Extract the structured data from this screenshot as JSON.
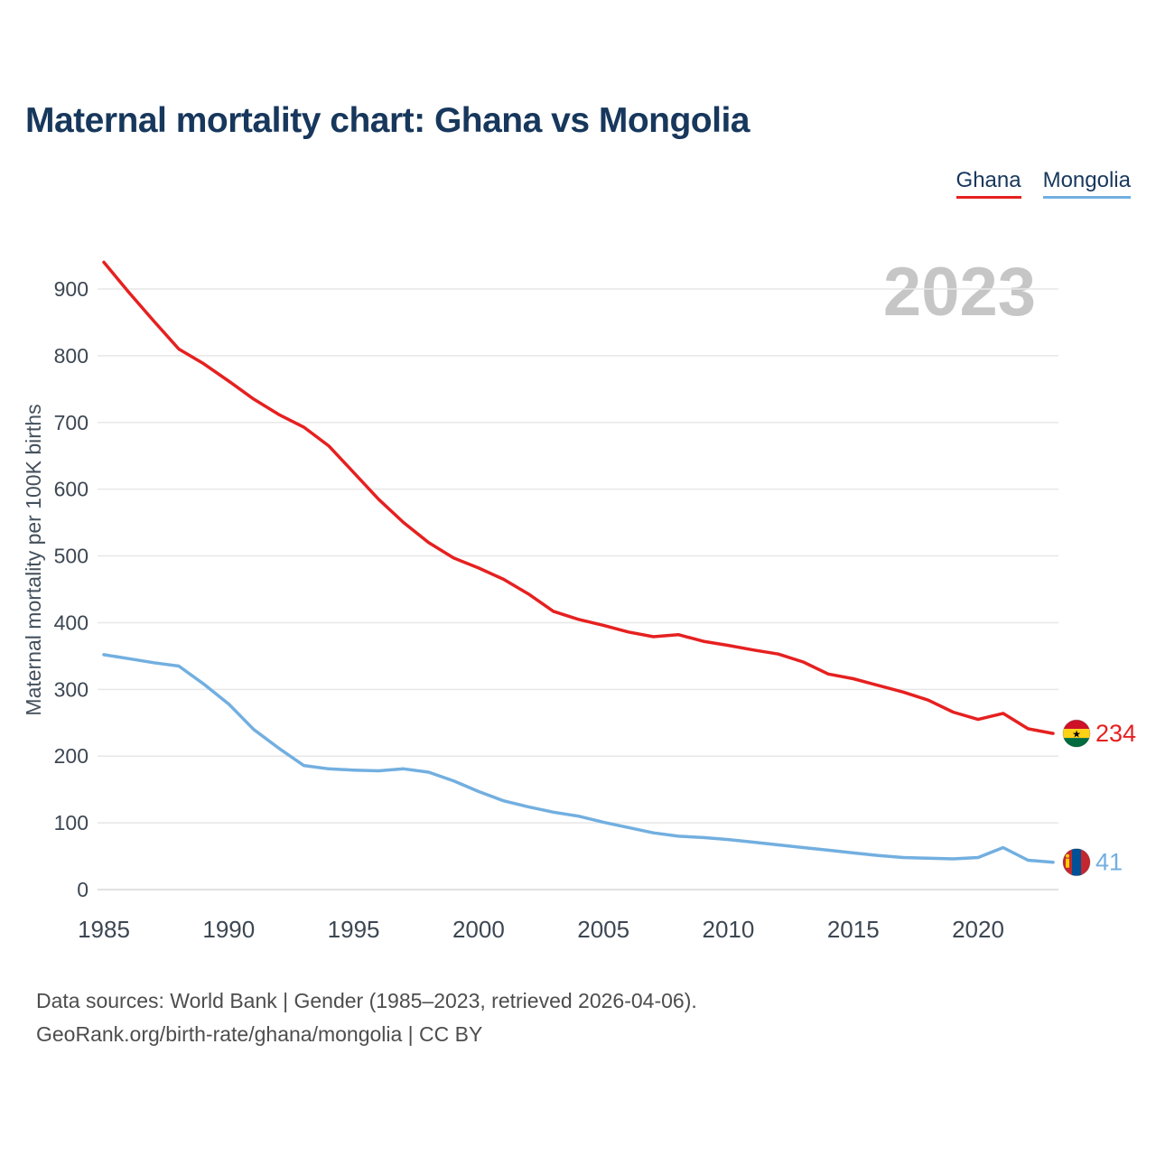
{
  "page": {
    "title": "Maternal mortality chart: Ghana vs Mongolia",
    "watermark": "2023"
  },
  "legend": {
    "items": [
      {
        "label": "Ghana",
        "color": "#e62020"
      },
      {
        "label": "Mongolia",
        "color": "#72afe0"
      }
    ]
  },
  "chart_data": {
    "type": "line",
    "title": "Maternal mortality chart: Ghana vs Mongolia",
    "xlabel": "",
    "ylabel": "Maternal mortality per 100K births",
    "ylim": [
      0,
      940
    ],
    "yticks": [
      0,
      100,
      200,
      300,
      400,
      500,
      600,
      700,
      800,
      900
    ],
    "xticks": [
      1985,
      1990,
      1995,
      2000,
      2005,
      2010,
      2015,
      2020
    ],
    "grid": true,
    "legend_position": "top-right",
    "x": [
      1985,
      1986,
      1987,
      1988,
      1989,
      1990,
      1991,
      1992,
      1993,
      1994,
      1995,
      1996,
      1997,
      1998,
      1999,
      2000,
      2001,
      2002,
      2003,
      2004,
      2005,
      2006,
      2007,
      2008,
      2009,
      2010,
      2011,
      2012,
      2013,
      2014,
      2015,
      2016,
      2017,
      2018,
      2019,
      2020,
      2021,
      2022,
      2023
    ],
    "series": [
      {
        "name": "Ghana",
        "color": "#e62020",
        "end_label": "234",
        "flag": "ghana",
        "values": [
          940,
          895,
          852,
          810,
          788,
          762,
          735,
          712,
          693,
          665,
          625,
          585,
          550,
          520,
          497,
          482,
          465,
          443,
          417,
          405,
          396,
          386,
          379,
          382,
          372,
          366,
          359,
          353,
          341,
          323,
          316,
          306,
          296,
          284,
          266,
          255,
          264,
          241,
          234
        ]
      },
      {
        "name": "Mongolia",
        "color": "#72afe0",
        "end_label": "41",
        "flag": "mongolia",
        "values": [
          352,
          346,
          340,
          335,
          308,
          278,
          240,
          212,
          186,
          181,
          179,
          178,
          181,
          176,
          163,
          147,
          133,
          124,
          116,
          110,
          101,
          93,
          85,
          80,
          78,
          75,
          71,
          67,
          63,
          59,
          55,
          51,
          48,
          47,
          46,
          48,
          63,
          44,
          41
        ]
      }
    ]
  },
  "footer": {
    "line1": "Data sources: World Bank | Gender (1985–2023, retrieved 2026-04-06).",
    "line2": "GeoRank.org/birth-rate/ghana/mongolia | CC BY"
  }
}
